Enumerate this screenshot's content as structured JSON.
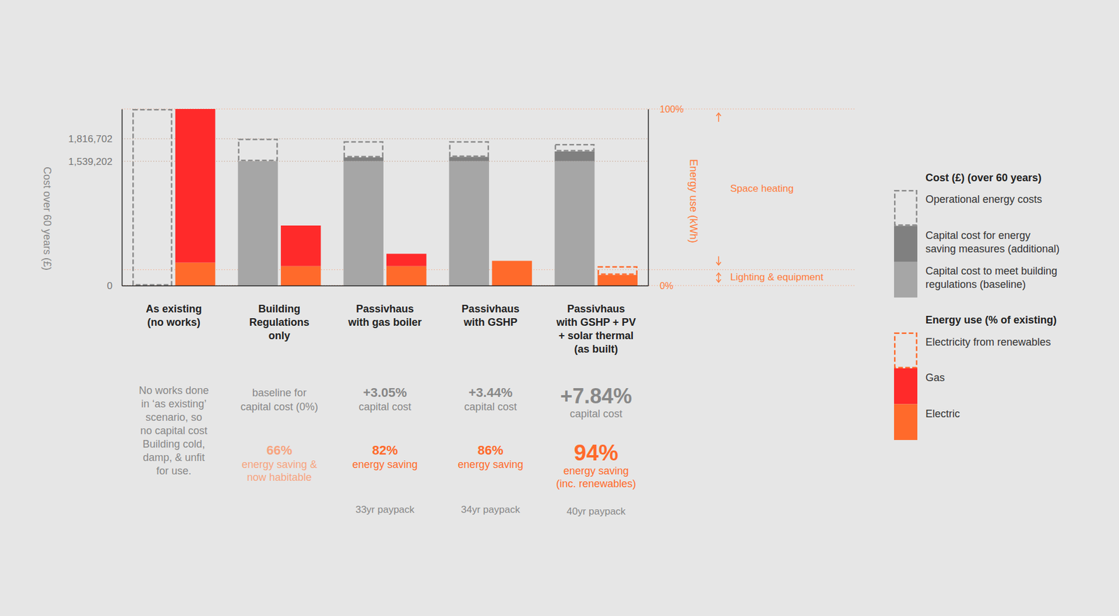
{
  "chart_data": {
    "type": "bar",
    "stacked": true,
    "grid": true,
    "legend": "right",
    "categories": [
      "As existing\n(no works)",
      "Building\nRegulations\nonly",
      "Passivhaus\nwith gas boiler",
      "Passivhaus\nwith GSHP",
      "Passivhaus\nwith GSHP + PV\n+ solar thermal\n(as built)"
    ],
    "y_label": "Cost over 60 years (£)",
    "y2_label": "Energy use (kWh)",
    "ylim": [
      0,
      2185000
    ],
    "yticks": [
      0,
      {
        "value": 1539202,
        "label": "1,539,202"
      },
      {
        "value": 1816702,
        "label": "1,816,702"
      }
    ],
    "y2lim": [
      0,
      100
    ],
    "y2ticks": [
      {
        "value": 0,
        "label": "0%"
      },
      {
        "value": 100,
        "label": "100%"
      }
    ],
    "series": [
      {
        "name": "Capital cost to meet building\nregulations (baseline)",
        "color": "#a6a6a6",
        "axis": "y",
        "values": [
          0,
          1539202,
          1539202,
          1539202,
          1539202
        ]
      },
      {
        "name": "Capital cost for energy\nsaving measures (additional)",
        "color": "#808080",
        "axis": "y",
        "values": [
          0,
          0,
          46946,
          52949,
          120673
        ]
      },
      {
        "name": "Operational energy costs",
        "color": "#8a8a8a",
        "axis": "y",
        "line_style": "dashed",
        "values": [
          2185000,
          277500,
          200000,
          195000,
          92000
        ]
      },
      {
        "name": "Electric",
        "color": "#ff6a2b",
        "axis": "y2",
        "values": [
          13,
          11,
          11,
          14,
          6
        ]
      },
      {
        "name": "Gas",
        "color": "#ff2a2a",
        "axis": "y2",
        "values": [
          87,
          23,
          7,
          0,
          0
        ]
      },
      {
        "name": "Electricity from renewables",
        "color": "#ff6a2b",
        "axis": "y2",
        "line_style": "dashed",
        "values": [
          0,
          0,
          0,
          0,
          5
        ]
      }
    ],
    "legend_groups": [
      {
        "title": "Cost (£) (over 60 years)",
        "axis": "y"
      },
      {
        "title": "Energy use (% of existing)",
        "axis": "y2"
      }
    ],
    "bands": [
      {
        "label": "Space heating",
        "from": 9,
        "to": 100
      },
      {
        "label": "Lighting & equipment",
        "from": 0,
        "to": 9
      }
    ],
    "notes": [
      {
        "text": "No works done\nin ‘as existing’\nscenario, so\nno capital cost\nBuilding cold,\ndamp, & unfit\nfor use."
      },
      {
        "capital_label": "baseline for\ncapital cost (0%)",
        "saving": "66%",
        "saving_label": "energy saving &\nnow habitable",
        "color": "#f7a47f"
      },
      {
        "capital": "+3.05%",
        "capital_label": "capital cost",
        "saving": "82%",
        "saving_label": "energy saving",
        "payback": "33yr paypack",
        "color": "#ff6a2b"
      },
      {
        "capital": "+3.44%",
        "capital_label": "capital cost",
        "saving": "86%",
        "saving_label": "energy saving",
        "payback": "34yr paypack",
        "color": "#ff6a2b"
      },
      {
        "capital": "+7.84%",
        "capital_label": "capital cost",
        "saving": "94%",
        "saving_label": "energy saving\n(inc. renewables)",
        "payback": "40yr paypack",
        "color": "#ff6a2b"
      }
    ]
  }
}
